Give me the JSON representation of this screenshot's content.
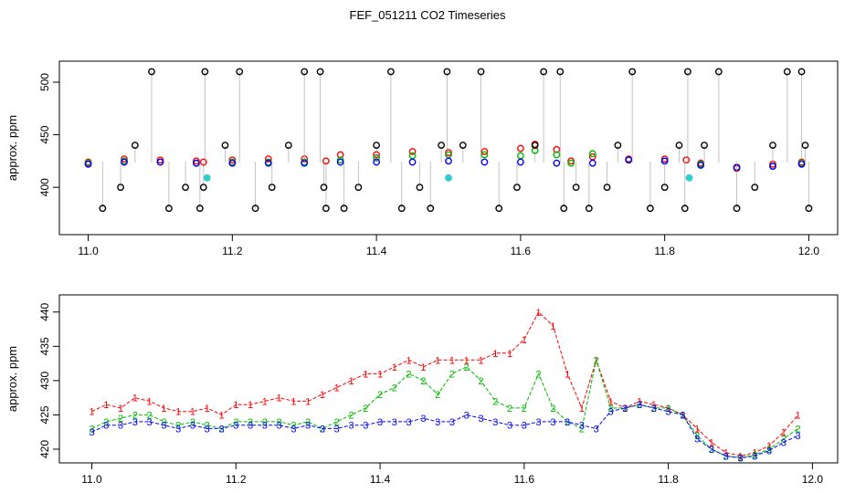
{
  "title": "FEF_051211  CO2 Timeseries",
  "chart_data": [
    {
      "type": "scatter",
      "title": "FEF_051211  CO2 Timeseries",
      "xlabel": "",
      "ylabel": "approx. ppm",
      "xlim": [
        10.96,
        12.04
      ],
      "ylim": [
        355,
        520
      ],
      "x_ticks": [
        11.0,
        11.2,
        11.4,
        11.6,
        11.8,
        12.0
      ],
      "x_tick_labels": [
        "11.0",
        "11.2",
        "11.4",
        "11.6",
        "11.8",
        "12.0"
      ],
      "y_ticks": [
        400,
        450,
        500
      ],
      "y_tick_labels": [
        "400",
        "450",
        "500"
      ],
      "grid": false,
      "legend": "none",
      "colors": {
        "series1": "#ff0000",
        "series2": "#00bb00",
        "series3": "#0000ff",
        "outlier": "#000000",
        "flag": "#33cccc",
        "trace": "#888888"
      },
      "series": [
        {
          "color": "#ff0000",
          "marker": "circle",
          "x": [
            11.0,
            11.05,
            11.1,
            11.15,
            11.16,
            11.2,
            11.25,
            11.3,
            11.33,
            11.35,
            11.4,
            11.45,
            11.5,
            11.55,
            11.6,
            11.62,
            11.65,
            11.67,
            11.7,
            11.75,
            11.8,
            11.83,
            11.85,
            11.9,
            11.95,
            11.99
          ],
          "y": [
            424,
            427,
            426,
            425,
            424,
            426,
            427,
            427,
            425,
            431,
            431,
            434,
            433,
            434,
            437,
            441,
            436,
            425,
            429,
            427,
            427,
            426,
            423,
            418,
            422,
            424
          ]
        },
        {
          "color": "#00bb00",
          "marker": "circle",
          "x": [
            11.0,
            11.05,
            11.1,
            11.15,
            11.2,
            11.25,
            11.3,
            11.35,
            11.4,
            11.45,
            11.5,
            11.55,
            11.6,
            11.62,
            11.65,
            11.67,
            11.7,
            11.75,
            11.8,
            11.85,
            11.9,
            11.95,
            11.99
          ],
          "y": [
            423,
            425,
            424,
            423,
            424,
            424,
            424,
            426,
            428,
            430,
            431,
            431,
            430,
            435,
            431,
            423,
            432,
            426,
            425,
            422,
            419,
            420,
            423
          ]
        },
        {
          "color": "#0000ff",
          "marker": "circle",
          "x": [
            11.0,
            11.05,
            11.1,
            11.15,
            11.2,
            11.25,
            11.3,
            11.35,
            11.4,
            11.45,
            11.5,
            11.55,
            11.6,
            11.65,
            11.7,
            11.75,
            11.8,
            11.85,
            11.9,
            11.95,
            11.99
          ],
          "y": [
            422,
            424,
            424,
            423,
            423,
            423,
            423,
            424,
            424,
            424,
            425,
            424,
            424,
            423,
            423,
            426,
            425,
            421,
            419,
            420,
            422
          ]
        },
        {
          "color": "#000000",
          "marker": "circle",
          "x": [
            11.02,
            11.045,
            11.065,
            11.088,
            11.112,
            11.135,
            11.155,
            11.16,
            11.162,
            11.19,
            11.21,
            11.232,
            11.255,
            11.278,
            11.3,
            11.322,
            11.327,
            11.33,
            11.355,
            11.375,
            11.4,
            11.42,
            11.435,
            11.46,
            11.475,
            11.49,
            11.498,
            11.52,
            11.545,
            11.57,
            11.595,
            11.62,
            11.632,
            11.655,
            11.66,
            11.677,
            11.695,
            11.72,
            11.735,
            11.755,
            11.78,
            11.8,
            11.82,
            11.828,
            11.832,
            11.855,
            11.875,
            11.9,
            11.925,
            11.95,
            11.97,
            11.99,
            11.995,
            12.0
          ],
          "y": [
            380,
            400,
            440,
            510,
            380,
            400,
            380,
            400,
            510,
            440,
            510,
            380,
            400,
            440,
            510,
            510,
            400,
            380,
            380,
            400,
            440,
            510,
            380,
            400,
            380,
            440,
            510,
            440,
            510,
            380,
            400,
            440,
            510,
            510,
            380,
            400,
            380,
            400,
            440,
            510,
            380,
            400,
            440,
            380,
            510,
            440,
            510,
            380,
            400,
            440,
            510,
            510,
            440,
            380
          ]
        },
        {
          "color": "#33cccc",
          "marker": "circle",
          "x": [
            11.165,
            11.5,
            11.834
          ],
          "y": [
            409,
            409,
            409
          ]
        }
      ]
    },
    {
      "type": "line",
      "xlabel": "",
      "ylabel": "approx. ppm",
      "xlim": [
        10.955,
        12.035
      ],
      "ylim": [
        418,
        442.5
      ],
      "x_ticks": [
        11.0,
        11.2,
        11.4,
        11.6,
        11.8,
        12.0
      ],
      "x_tick_labels": [
        "11.0",
        "11.2",
        "11.4",
        "11.6",
        "11.8",
        "12.0"
      ],
      "y_ticks": [
        420,
        425,
        430,
        435,
        440
      ],
      "y_tick_labels": [
        "420",
        "425",
        "430",
        "435",
        "440"
      ],
      "grid": false,
      "legend": "none",
      "series": [
        {
          "color": "#ff0000",
          "marker": "1",
          "x": [
            11.0,
            11.02,
            11.04,
            11.06,
            11.08,
            11.1,
            11.12,
            11.14,
            11.16,
            11.18,
            11.2,
            11.22,
            11.24,
            11.26,
            11.28,
            11.3,
            11.32,
            11.34,
            11.36,
            11.38,
            11.4,
            11.42,
            11.44,
            11.46,
            11.48,
            11.5,
            11.52,
            11.54,
            11.56,
            11.58,
            11.6,
            11.62,
            11.64,
            11.66,
            11.68,
            11.7,
            11.72,
            11.74,
            11.76,
            11.78,
            11.8,
            11.82,
            11.84,
            11.86,
            11.88,
            11.9,
            11.92,
            11.94,
            11.96,
            11.98
          ],
          "y": [
            425.5,
            426.5,
            426,
            427.5,
            427,
            426,
            425.5,
            425.5,
            426,
            425,
            426.5,
            426.5,
            427,
            427.5,
            427,
            427,
            428,
            429,
            430,
            431,
            431,
            432,
            433,
            432,
            433,
            433,
            433,
            433,
            434,
            434,
            436,
            440,
            438,
            431,
            426,
            433,
            427,
            426,
            427,
            426.5,
            426,
            425,
            423,
            421,
            419.5,
            419,
            419.5,
            420.5,
            422.5,
            425
          ]
        },
        {
          "color": "#00bb00",
          "marker": "2",
          "x": [
            11.0,
            11.02,
            11.04,
            11.06,
            11.08,
            11.1,
            11.12,
            11.14,
            11.16,
            11.18,
            11.2,
            11.22,
            11.24,
            11.26,
            11.28,
            11.3,
            11.32,
            11.34,
            11.36,
            11.38,
            11.4,
            11.42,
            11.44,
            11.46,
            11.48,
            11.5,
            11.52,
            11.54,
            11.56,
            11.58,
            11.6,
            11.62,
            11.64,
            11.66,
            11.68,
            11.7,
            11.72,
            11.74,
            11.76,
            11.78,
            11.8,
            11.82,
            11.84,
            11.86,
            11.88,
            11.9,
            11.92,
            11.94,
            11.96,
            11.98
          ],
          "y": [
            423,
            424,
            424.5,
            425,
            425,
            424,
            423.5,
            424,
            423.5,
            423,
            424,
            424,
            424,
            424,
            423.5,
            424,
            423,
            424,
            425,
            426,
            428,
            429,
            431,
            430,
            428,
            431,
            432,
            430,
            427,
            426,
            426,
            431,
            426,
            424,
            423,
            433,
            426,
            426,
            426.5,
            426,
            426,
            425,
            422,
            420,
            419,
            418.8,
            419.2,
            420,
            421.5,
            423
          ]
        },
        {
          "color": "#0000ff",
          "marker": "3",
          "x": [
            11.0,
            11.02,
            11.04,
            11.06,
            11.08,
            11.1,
            11.12,
            11.14,
            11.16,
            11.18,
            11.2,
            11.22,
            11.24,
            11.26,
            11.28,
            11.3,
            11.32,
            11.34,
            11.36,
            11.38,
            11.4,
            11.42,
            11.44,
            11.46,
            11.48,
            11.5,
            11.52,
            11.54,
            11.56,
            11.58,
            11.6,
            11.62,
            11.64,
            11.66,
            11.68,
            11.7,
            11.72,
            11.74,
            11.76,
            11.78,
            11.8,
            11.82,
            11.84,
            11.86,
            11.88,
            11.9,
            11.92,
            11.94,
            11.96,
            11.98
          ],
          "y": [
            422.5,
            423.5,
            423.5,
            424,
            424,
            423.5,
            423,
            423.5,
            423,
            423,
            423.5,
            423.5,
            423.5,
            423.5,
            423,
            423.5,
            423,
            423,
            423.5,
            423.5,
            424,
            424,
            424,
            424.5,
            424,
            424,
            425,
            424.5,
            424,
            423.5,
            423.5,
            424,
            424,
            424,
            423.5,
            423,
            425.5,
            426,
            426.5,
            426,
            425.5,
            425,
            421.5,
            420,
            419,
            418.7,
            419,
            419.8,
            421,
            422
          ]
        }
      ]
    }
  ]
}
